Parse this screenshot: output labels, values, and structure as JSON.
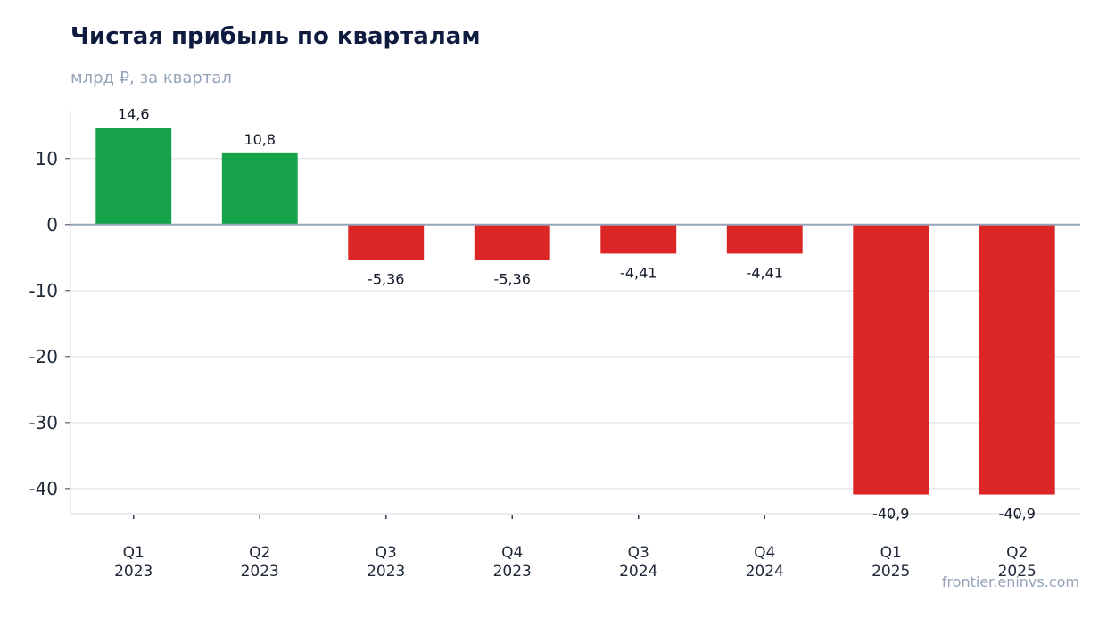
{
  "header": {
    "title": "Чистая прибыль по кварталам",
    "subtitle": "млрд ₽, за квартал"
  },
  "footer": {
    "source": "frontier.eninvs.com"
  },
  "colors": {
    "positive": "#16a34a",
    "negative": "#dc2626",
    "grid": "#e5e7eb",
    "zero_line": "#94a3b8",
    "title": "#0f1c3f",
    "text": "#1f2937"
  },
  "chart_data": {
    "type": "bar",
    "title": "Чистая прибыль по кварталам",
    "subtitle": "млрд ₽, за квартал",
    "xlabel": "",
    "ylabel": "",
    "categories": [
      [
        "Q1",
        "2023"
      ],
      [
        "Q2",
        "2023"
      ],
      [
        "Q3",
        "2023"
      ],
      [
        "Q4",
        "2023"
      ],
      [
        "Q3",
        "2024"
      ],
      [
        "Q4",
        "2024"
      ],
      [
        "Q1",
        "2025"
      ],
      [
        "Q2",
        "2025"
      ]
    ],
    "values": [
      14.6,
      10.8,
      -5.36,
      -5.36,
      -4.41,
      -4.41,
      -40.9,
      -40.9
    ],
    "value_labels": [
      "14,6",
      "10,8",
      "-5,36",
      "-5,36",
      "-4,41",
      "-4,41",
      "-40,9",
      "-40,9"
    ],
    "yticks": [
      10,
      0,
      -10,
      -20,
      -30,
      -40
    ],
    "ylim": [
      -43.8,
      17.4
    ],
    "grid": true,
    "legend": "none"
  }
}
